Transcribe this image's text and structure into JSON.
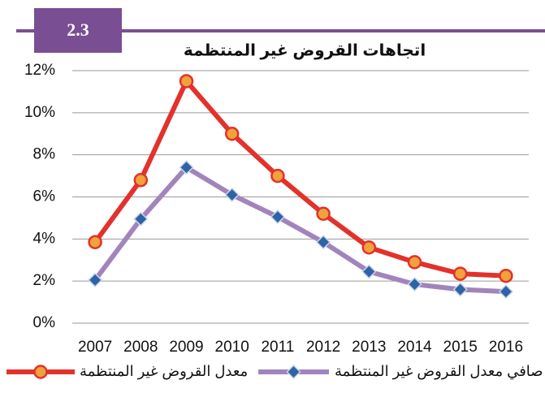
{
  "chart_data": {
    "type": "line",
    "badge": "2.3",
    "title": "اتجاهات القروض غير المنتظمة",
    "categories": [
      "2007",
      "2008",
      "2009",
      "2010",
      "2011",
      "2012",
      "2013",
      "2014",
      "2015",
      "2016"
    ],
    "series": [
      {
        "name": "معدل القروض غير المنتظمة",
        "color": "#e3312b",
        "marker": "circle",
        "marker_color": "#f0a23c",
        "values": [
          3.85,
          6.8,
          11.5,
          9.0,
          7.0,
          5.2,
          3.6,
          2.9,
          2.35,
          2.25
        ]
      },
      {
        "name": "صافي معدل القروض غير المنتظمة",
        "color": "#a284bd",
        "marker": "diamond",
        "marker_color": "#2f63a6",
        "values": [
          2.05,
          4.95,
          7.4,
          6.1,
          5.05,
          3.85,
          2.45,
          1.85,
          1.6,
          1.5
        ]
      }
    ],
    "ylim": [
      0,
      12
    ],
    "yticks": [
      {
        "value": 0,
        "label": "0%"
      },
      {
        "value": 2,
        "label": "2%"
      },
      {
        "value": 4,
        "label": "4%"
      },
      {
        "value": 6,
        "label": "6%"
      },
      {
        "value": 8,
        "label": "8%"
      },
      {
        "value": 10,
        "label": "10%"
      },
      {
        "value": 12,
        "label": "12%"
      }
    ],
    "grid": true,
    "legend": "bottom"
  }
}
